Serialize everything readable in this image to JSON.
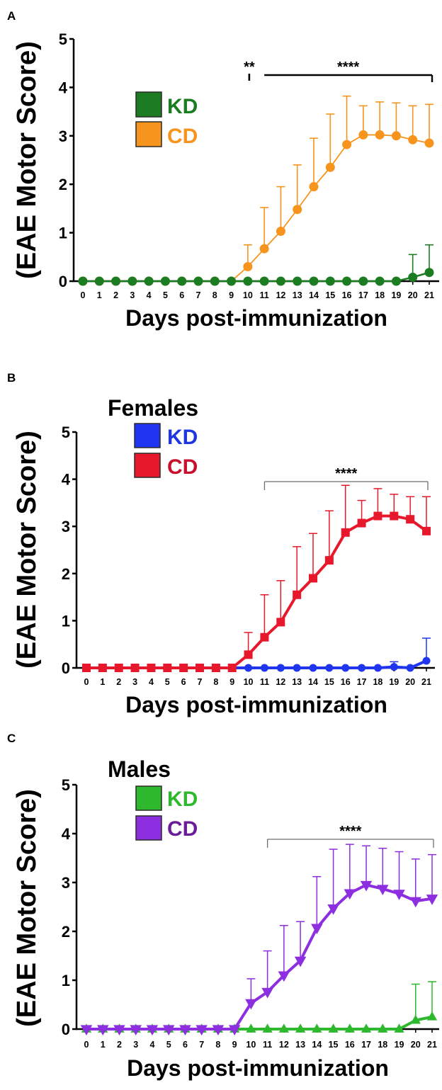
{
  "chart_data": [
    {
      "panel": "A",
      "type": "line",
      "xlabel": "Days post-immunization",
      "ylabel": "(EAE Motor Score)",
      "ylim": [
        0,
        5
      ],
      "yticks": [
        0,
        1,
        2,
        3,
        4,
        5
      ],
      "x": [
        0,
        1,
        2,
        3,
        4,
        5,
        6,
        7,
        8,
        9,
        10,
        11,
        12,
        13,
        14,
        15,
        16,
        17,
        18,
        19,
        20,
        21
      ],
      "series": [
        {
          "name": "KD",
          "marker": "circle",
          "color": "#1c7c22",
          "label_color": "#1c7c22",
          "values": [
            0,
            0,
            0,
            0,
            0,
            0,
            0,
            0,
            0,
            0,
            0,
            0,
            0,
            0,
            0,
            0,
            0,
            0,
            0,
            0,
            0.08,
            0.18
          ],
          "sd": [
            0,
            0,
            0,
            0,
            0,
            0,
            0,
            0,
            0,
            0,
            0,
            0,
            0,
            0,
            0,
            0,
            0,
            0,
            0,
            0,
            0.47,
            0.57
          ]
        },
        {
          "name": "CD",
          "marker": "circle",
          "color": "#f7941d",
          "label_color": "#f7941d",
          "values": [
            0,
            0,
            0,
            0,
            0,
            0,
            0,
            0,
            0,
            0,
            0.3,
            0.67,
            1.03,
            1.48,
            1.95,
            2.35,
            2.82,
            3.02,
            3.02,
            3.0,
            2.92,
            2.85
          ],
          "sd": [
            0,
            0,
            0,
            0,
            0,
            0,
            0,
            0,
            0,
            0,
            0.45,
            0.85,
            0.92,
            0.92,
            1.0,
            1.1,
            1.0,
            0.6,
            0.68,
            0.68,
            0.7,
            0.8
          ]
        }
      ],
      "annotations": [
        {
          "text": "**",
          "x": 10
        },
        {
          "text": "****",
          "x_start": 11,
          "x_end": 21
        }
      ]
    },
    {
      "panel": "B",
      "type": "line",
      "title": "Females",
      "xlabel": "Days post-immunization",
      "ylabel": "(EAE Motor Score)",
      "ylim": [
        0,
        5
      ],
      "yticks": [
        0,
        1,
        2,
        3,
        4,
        5
      ],
      "x": [
        0,
        1,
        2,
        3,
        4,
        5,
        6,
        7,
        8,
        9,
        10,
        11,
        12,
        13,
        14,
        15,
        16,
        17,
        18,
        19,
        20,
        21
      ],
      "series": [
        {
          "name": "KD",
          "marker": "circle",
          "color": "#1f35f0",
          "label_color": "#1f35e0",
          "values": [
            0,
            0,
            0,
            0,
            0,
            0,
            0,
            0,
            0,
            0,
            0,
            0,
            0,
            0,
            0,
            0,
            0,
            0,
            0,
            0.02,
            0,
            0.15
          ],
          "sd": [
            0,
            0,
            0,
            0,
            0,
            0,
            0,
            0,
            0,
            0,
            0,
            0,
            0,
            0,
            0,
            0,
            0,
            0,
            0,
            0.11,
            0,
            0.48
          ]
        },
        {
          "name": "CD",
          "marker": "square",
          "color": "#e8182c",
          "label_color": "#c8102e",
          "values": [
            0,
            0,
            0,
            0,
            0,
            0,
            0,
            0,
            0,
            0,
            0.28,
            0.65,
            0.97,
            1.55,
            1.9,
            2.28,
            2.87,
            3.07,
            3.22,
            3.22,
            3.15,
            2.9
          ],
          "sd": [
            0,
            0,
            0,
            0,
            0,
            0,
            0,
            0,
            0,
            0,
            0.47,
            0.9,
            0.88,
            1.02,
            0.95,
            1.05,
            1.0,
            0.48,
            0.58,
            0.46,
            0.48,
            0.73
          ]
        }
      ],
      "annotations": [
        {
          "text": "****",
          "x_start": 11,
          "x_end": 21
        }
      ]
    },
    {
      "panel": "C",
      "type": "line",
      "title": "Males",
      "xlabel": "Days post-immunization",
      "ylabel": "(EAE Motor Score)",
      "ylim": [
        0,
        5
      ],
      "yticks": [
        0,
        1,
        2,
        3,
        4,
        5
      ],
      "x": [
        0,
        1,
        2,
        3,
        4,
        5,
        6,
        7,
        8,
        9,
        10,
        11,
        12,
        13,
        14,
        15,
        16,
        17,
        18,
        19,
        20,
        21
      ],
      "series": [
        {
          "name": "KD",
          "marker": "triangle-up",
          "color": "#2db82d",
          "label_color": "#2db82d",
          "values": [
            0,
            0,
            0,
            0,
            0,
            0,
            0,
            0,
            0,
            0,
            0,
            0,
            0,
            0,
            0,
            0,
            0,
            0,
            0,
            0,
            0.18,
            0.25
          ],
          "sd": [
            0,
            0,
            0,
            0,
            0,
            0,
            0,
            0,
            0,
            0,
            0,
            0,
            0,
            0,
            0,
            0,
            0,
            0,
            0,
            0,
            0.74,
            0.72
          ]
        },
        {
          "name": "CD",
          "marker": "triangle-down",
          "color": "#8d2ee0",
          "label_color": "#6b1c98",
          "values": [
            0,
            0,
            0,
            0,
            0,
            0,
            0,
            0,
            0,
            0,
            0.53,
            0.76,
            1.1,
            1.4,
            2.07,
            2.47,
            2.78,
            2.95,
            2.87,
            2.77,
            2.62,
            2.67
          ],
          "sd": [
            0,
            0,
            0,
            0,
            0,
            0,
            0,
            0,
            0,
            0,
            0.5,
            0.84,
            1.02,
            0.8,
            1.05,
            1.21,
            1.0,
            0.8,
            0.83,
            0.86,
            0.86,
            0.9
          ]
        }
      ],
      "annotations": [
        {
          "text": "****",
          "x_start": 11,
          "x_end": 21
        }
      ]
    }
  ]
}
